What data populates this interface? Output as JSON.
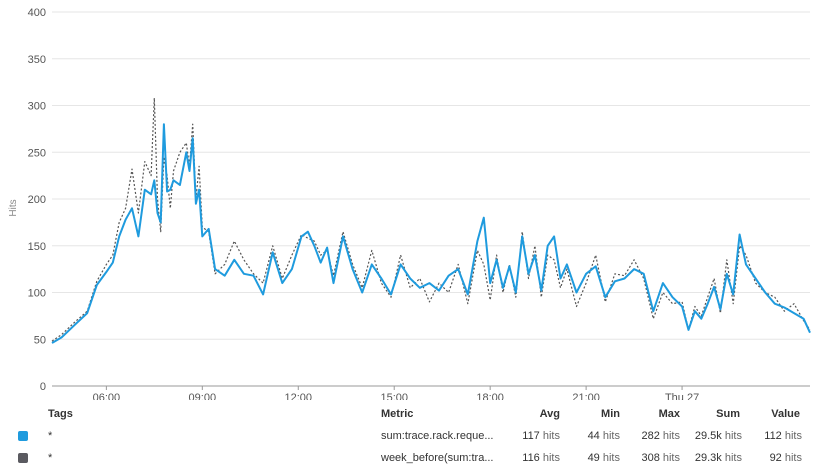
{
  "chart_data": {
    "type": "line",
    "ylabel": "Hits",
    "ylim": [
      0,
      400
    ],
    "yticks": [
      0,
      50,
      100,
      150,
      200,
      250,
      300,
      350,
      400
    ],
    "xlim": [
      4.3,
      28.0
    ],
    "xticks": [
      {
        "value": 6,
        "label": "06:00"
      },
      {
        "value": 9,
        "label": "09:00"
      },
      {
        "value": 12,
        "label": "12:00"
      },
      {
        "value": 15,
        "label": "15:00"
      },
      {
        "value": 18,
        "label": "18:00"
      },
      {
        "value": 21,
        "label": "21:00"
      },
      {
        "value": 24,
        "label": "Thu 27"
      }
    ],
    "grid": true,
    "series": [
      {
        "color": "#1f9bde",
        "style": "solid",
        "x": [
          4.3,
          4.6,
          5.0,
          5.4,
          5.7,
          6.0,
          6.2,
          6.4,
          6.6,
          6.8,
          7.0,
          7.2,
          7.4,
          7.5,
          7.6,
          7.7,
          7.8,
          7.9,
          8.0,
          8.1,
          8.3,
          8.5,
          8.6,
          8.7,
          8.8,
          8.9,
          9.0,
          9.2,
          9.4,
          9.7,
          10.0,
          10.3,
          10.6,
          10.9,
          11.2,
          11.5,
          11.8,
          12.1,
          12.3,
          12.5,
          12.7,
          12.9,
          13.1,
          13.4,
          13.7,
          14.0,
          14.3,
          14.6,
          14.9,
          15.2,
          15.5,
          15.8,
          16.1,
          16.4,
          16.7,
          17.0,
          17.3,
          17.6,
          17.8,
          18.0,
          18.2,
          18.4,
          18.6,
          18.8,
          19.0,
          19.2,
          19.4,
          19.6,
          19.8,
          20.0,
          20.2,
          20.4,
          20.7,
          21.0,
          21.3,
          21.6,
          21.9,
          22.2,
          22.5,
          22.8,
          23.1,
          23.4,
          23.7,
          24.0,
          24.2,
          24.4,
          24.6,
          24.8,
          25.0,
          25.2,
          25.4,
          25.6,
          25.8,
          26.0,
          26.3,
          26.6,
          26.9,
          27.2,
          27.5,
          27.8,
          28.0
        ],
        "values": [
          46,
          52,
          65,
          78,
          108,
          122,
          132,
          160,
          178,
          190,
          160,
          210,
          205,
          220,
          185,
          175,
          280,
          208,
          210,
          220,
          215,
          250,
          230,
          265,
          195,
          210,
          160,
          168,
          125,
          118,
          135,
          120,
          118,
          98,
          143,
          110,
          125,
          160,
          165,
          150,
          132,
          148,
          110,
          160,
          125,
          100,
          130,
          115,
          98,
          130,
          115,
          105,
          110,
          102,
          118,
          125,
          98,
          155,
          180,
          110,
          135,
          105,
          128,
          100,
          160,
          120,
          140,
          102,
          150,
          160,
          115,
          130,
          100,
          120,
          128,
          95,
          112,
          115,
          125,
          120,
          80,
          110,
          95,
          85,
          60,
          80,
          72,
          88,
          106,
          82,
          120,
          98,
          162,
          130,
          115,
          100,
          88,
          84,
          78,
          72,
          57
        ]
      },
      {
        "color": "#555555",
        "style": "dotted",
        "x": [
          4.3,
          4.6,
          5.0,
          5.4,
          5.7,
          6.0,
          6.2,
          6.4,
          6.6,
          6.8,
          7.0,
          7.2,
          7.4,
          7.5,
          7.6,
          7.7,
          7.8,
          7.9,
          8.0,
          8.1,
          8.3,
          8.5,
          8.6,
          8.7,
          8.8,
          8.9,
          9.0,
          9.2,
          9.4,
          9.7,
          10.0,
          10.3,
          10.6,
          10.9,
          11.2,
          11.5,
          11.8,
          12.1,
          12.3,
          12.5,
          12.7,
          12.9,
          13.1,
          13.4,
          13.7,
          14.0,
          14.3,
          14.6,
          14.9,
          15.2,
          15.5,
          15.8,
          16.1,
          16.4,
          16.7,
          17.0,
          17.3,
          17.6,
          17.8,
          18.0,
          18.2,
          18.4,
          18.6,
          18.8,
          19.0,
          19.2,
          19.4,
          19.6,
          19.8,
          20.0,
          20.2,
          20.4,
          20.7,
          21.0,
          21.3,
          21.6,
          21.9,
          22.2,
          22.5,
          22.8,
          23.1,
          23.4,
          23.7,
          24.0,
          24.2,
          24.4,
          24.6,
          24.8,
          25.0,
          25.2,
          25.4,
          25.6,
          25.8,
          26.0,
          26.3,
          26.6,
          26.9,
          27.2,
          27.5,
          27.8,
          28.0
        ],
        "values": [
          48,
          55,
          68,
          80,
          112,
          130,
          140,
          175,
          190,
          232,
          185,
          240,
          225,
          308,
          200,
          165,
          245,
          225,
          190,
          230,
          250,
          260,
          235,
          280,
          200,
          235,
          170,
          165,
          120,
          130,
          155,
          135,
          120,
          110,
          150,
          115,
          140,
          162,
          158,
          155,
          140,
          145,
          118,
          165,
          130,
          105,
          145,
          110,
          95,
          140,
          105,
          115,
          90,
          110,
          100,
          130,
          88,
          145,
          130,
          92,
          140,
          100,
          130,
          95,
          165,
          115,
          150,
          95,
          140,
          135,
          105,
          125,
          85,
          110,
          140,
          90,
          120,
          118,
          135,
          115,
          72,
          100,
          88,
          90,
          60,
          85,
          75,
          95,
          115,
          78,
          135,
          88,
          150,
          140,
          110,
          100,
          95,
          80,
          88,
          70,
          60
        ]
      }
    ]
  },
  "legend": {
    "headers": {
      "tags": "Tags",
      "metric": "Metric",
      "avg": "Avg",
      "min": "Min",
      "max": "Max",
      "sum": "Sum",
      "value": "Value"
    },
    "rows": [
      {
        "color": "#1f9bde",
        "tag": "*",
        "metric": "sum:trace.rack.reque...",
        "avg": "117",
        "min": "44",
        "max": "282",
        "sum": "29.5k",
        "value": "112",
        "unit": "hits"
      },
      {
        "color": "#5a5a60",
        "tag": "*",
        "metric": "week_before(sum:tra...",
        "avg": "116",
        "min": "49",
        "max": "308",
        "sum": "29.3k",
        "value": "92",
        "unit": "hits"
      }
    ]
  }
}
